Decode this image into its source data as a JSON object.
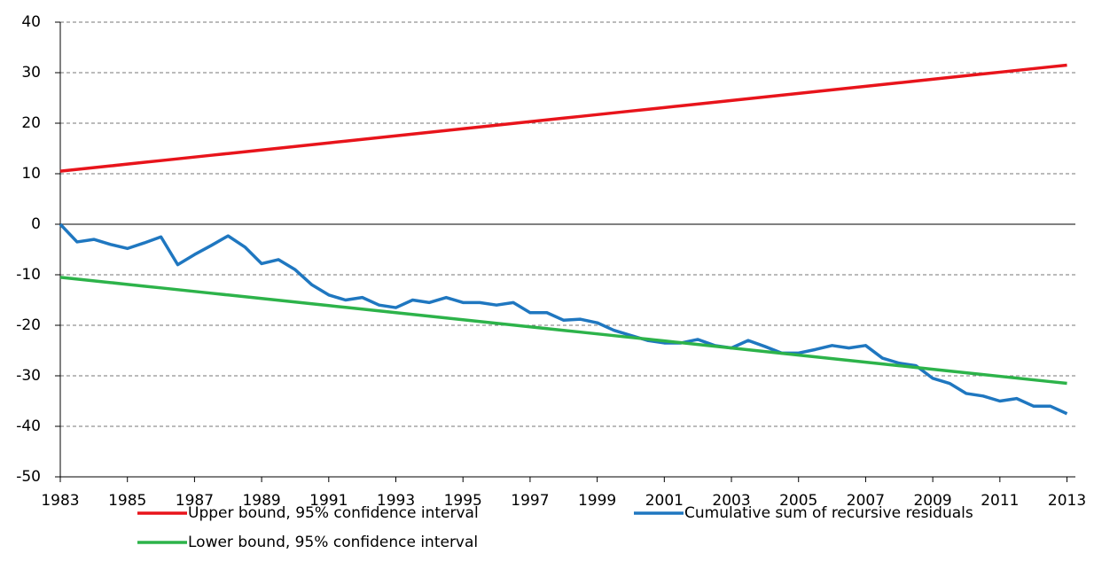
{
  "chart_data": {
    "type": "line",
    "x": [
      1983,
      1983.5,
      1984,
      1984.5,
      1985,
      1985.5,
      1986,
      1986.5,
      1987,
      1987.5,
      1988,
      1988.5,
      1989,
      1989.5,
      1990,
      1990.5,
      1991,
      1991.5,
      1992,
      1992.5,
      1993,
      1993.5,
      1994,
      1994.5,
      1995,
      1995.5,
      1996,
      1996.5,
      1997,
      1997.5,
      1998,
      1998.5,
      1999,
      1999.5,
      2000,
      2000.5,
      2001,
      2001.5,
      2002,
      2002.5,
      2003,
      2003.5,
      2004,
      2004.5,
      2005,
      2005.5,
      2006,
      2006.5,
      2007,
      2007.5,
      2008,
      2008.5,
      2009,
      2009.5,
      2010,
      2010.5,
      2011,
      2011.5,
      2012,
      2012.5,
      2013
    ],
    "series": [
      {
        "name": "Upper bound, 95% confidence interval",
        "color": "#e8141b",
        "values": [
          10.5,
          10.85,
          11.2,
          11.55,
          11.9,
          12.25,
          12.6,
          12.95,
          13.3,
          13.65,
          14,
          14.35,
          14.7,
          15.05,
          15.4,
          15.75,
          16.1,
          16.45,
          16.8,
          17.15,
          17.5,
          17.85,
          18.2,
          18.55,
          18.9,
          19.25,
          19.6,
          19.95,
          20.3,
          20.65,
          21,
          21.35,
          21.7,
          22.05,
          22.4,
          22.75,
          23.1,
          23.45,
          23.8,
          24.15,
          24.5,
          24.85,
          25.2,
          25.55,
          25.9,
          26.25,
          26.6,
          26.95,
          27.3,
          27.65,
          28,
          28.35,
          28.7,
          29.05,
          29.4,
          29.75,
          30.1,
          30.45,
          30.8,
          31.15,
          31.5
        ]
      },
      {
        "name": "Cumulative sum of recursive residuals",
        "color": "#1f77c0",
        "values": [
          0,
          -3.5,
          -3,
          -4,
          -4.8,
          -3.7,
          -2.5,
          -8,
          -6,
          -4.2,
          -2.3,
          -4.5,
          -7.8,
          -7,
          -9,
          -12,
          -14,
          -15,
          -14.5,
          -16,
          -16.5,
          -15,
          -15.5,
          -14.5,
          -15.5,
          -15.5,
          -16,
          -15.5,
          -17.5,
          -17.5,
          -19,
          -18.8,
          -19.5,
          -21,
          -22,
          -23,
          -23.5,
          -23.5,
          -22.8,
          -24,
          -24.5,
          -23,
          -24.2,
          -25.5,
          -25.5,
          -24.8,
          -24,
          -24.5,
          -24,
          -26.5,
          -27.5,
          -28,
          -30.5,
          -31.5,
          -33.5,
          -34,
          -35,
          -34.5,
          -36,
          -36,
          -37.5
        ]
      },
      {
        "name": "Lower bound, 95% confidence interval",
        "color": "#2db34a",
        "values": [
          -10.5,
          -10.85,
          -11.2,
          -11.55,
          -11.9,
          -12.25,
          -12.6,
          -12.95,
          -13.3,
          -13.65,
          -14,
          -14.35,
          -14.7,
          -15.05,
          -15.4,
          -15.75,
          -16.1,
          -16.45,
          -16.8,
          -17.15,
          -17.5,
          -17.85,
          -18.2,
          -18.55,
          -18.9,
          -19.25,
          -19.6,
          -19.95,
          -20.3,
          -20.65,
          -21,
          -21.35,
          -21.7,
          -22.05,
          -22.4,
          -22.75,
          -23.1,
          -23.45,
          -23.8,
          -24.15,
          -24.5,
          -24.85,
          -25.2,
          -25.55,
          -25.9,
          -26.25,
          -26.6,
          -26.95,
          -27.3,
          -27.65,
          -28,
          -28.35,
          -28.7,
          -29.05,
          -29.4,
          -29.75,
          -30.1,
          -30.45,
          -30.8,
          -31.15,
          -31.5
        ]
      }
    ],
    "xlim": [
      1983,
      2013.25
    ],
    "xticks": [
      1983,
      1985,
      1987,
      1989,
      1991,
      1993,
      1995,
      1997,
      1999,
      2001,
      2003,
      2005,
      2007,
      2009,
      2011,
      2013
    ],
    "ylim": [
      -50,
      40
    ],
    "yticks": [
      -50,
      -40,
      -30,
      -20,
      -10,
      0,
      10,
      20,
      30,
      40
    ],
    "grid": true
  }
}
